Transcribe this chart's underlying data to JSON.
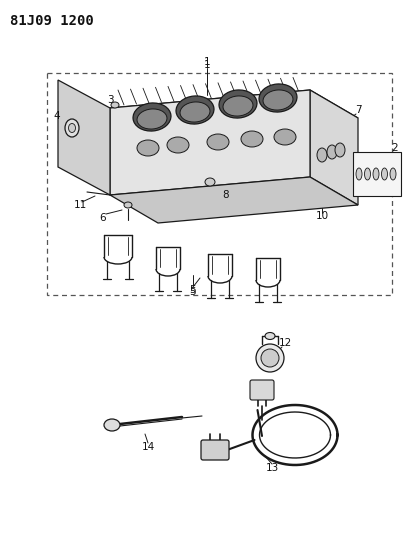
{
  "title": "81J09 1200",
  "bg_color": "#ffffff",
  "title_fontsize": 10,
  "fig_width": 4.14,
  "fig_height": 5.33,
  "dpi": 100,
  "line_color": "#1a1a1a",
  "text_color": "#111111",
  "label_fontsize": 7.5
}
